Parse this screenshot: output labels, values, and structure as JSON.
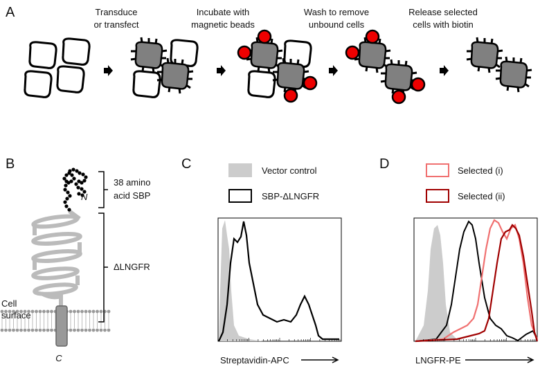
{
  "panels": {
    "A": {
      "label": "A",
      "steps": [
        [
          "Transduce",
          "or transfect"
        ],
        [
          "Incubate with",
          "magnetic beads"
        ],
        [
          "Wash to remove",
          "unbound cells"
        ],
        [
          "Release selected",
          "cells with biotin"
        ]
      ]
    },
    "B": {
      "label": "B",
      "sbp_label": [
        "38 amino",
        "acid SBP"
      ],
      "n_terminus": "N",
      "lngfr": "ΔLNGFR",
      "cell_surface": [
        "Cell",
        "surface"
      ],
      "c_terminus": "C"
    },
    "C": {
      "label": "C",
      "legend": [
        "Vector control",
        "SBP-ΔLNGFR"
      ],
      "x_axis": "Streptavidin-APC"
    },
    "D": {
      "label": "D",
      "legend": [
        "Selected (i)",
        "Selected (ii)"
      ],
      "x_axis": "LNGFR-PE"
    }
  }
}
